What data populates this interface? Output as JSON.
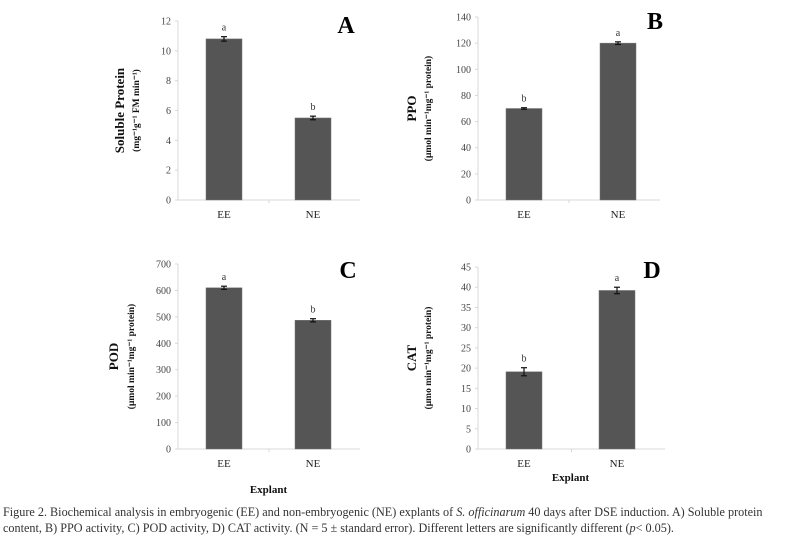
{
  "chart_data": [
    {
      "type": "bar",
      "panel": "A",
      "categories": [
        "EE",
        "NE"
      ],
      "values": [
        10.8,
        5.5
      ],
      "errors": [
        0.15,
        0.12
      ],
      "significance": [
        "a",
        "b"
      ],
      "ylabel": "Soluble Protein",
      "ylabel_unit": "(mg⁻¹g⁻¹ FM min⁻¹)",
      "xlabel": "",
      "ylim": [
        0,
        12
      ],
      "yticks": [
        0,
        2,
        4,
        6,
        8,
        10,
        12
      ],
      "bar_color": "#555555",
      "grid": false
    },
    {
      "type": "bar",
      "panel": "B",
      "categories": [
        "EE",
        "NE"
      ],
      "values": [
        70,
        120
      ],
      "errors": [
        0.6,
        1.0
      ],
      "significance": [
        "b",
        "a"
      ],
      "ylabel": "PPO",
      "ylabel_unit": "(μmol min⁻¹mg⁻¹ protein)",
      "xlabel": "",
      "ylim": [
        0,
        140
      ],
      "yticks": [
        0,
        20,
        40,
        60,
        80,
        100,
        120,
        140
      ],
      "bar_color": "#555555",
      "grid": false
    },
    {
      "type": "bar",
      "panel": "C",
      "categories": [
        "EE",
        "NE"
      ],
      "values": [
        610,
        487
      ],
      "errors": [
        6,
        6
      ],
      "significance": [
        "a",
        "b"
      ],
      "ylabel": "POD",
      "ylabel_unit": "(μmol min⁻¹mg⁻¹ protein)",
      "xlabel": "Explant",
      "ylim": [
        0,
        700
      ],
      "yticks": [
        0,
        100,
        200,
        300,
        400,
        500,
        600,
        700
      ],
      "bar_color": "#555555",
      "grid": false
    },
    {
      "type": "bar",
      "panel": "D",
      "categories": [
        "EE",
        "NE"
      ],
      "values": [
        19.1,
        39.2
      ],
      "errors": [
        1.0,
        0.8
      ],
      "significance": [
        "b",
        "a"
      ],
      "ylabel": "CAT",
      "ylabel_unit": "(μmo min⁻¹mg⁻¹ protein)",
      "xlabel": "Explant",
      "ylim": [
        0,
        45
      ],
      "yticks": [
        0,
        5,
        10,
        15,
        20,
        25,
        30,
        35,
        40,
        45
      ],
      "bar_color": "#555555",
      "grid": false
    }
  ],
  "caption": {
    "part1": "Figure 2. Biochemical analysis in embryogenic (EE) and non-embryogenic (NE) explants of ",
    "species": "S. officinarum",
    "part2": " 40 days after DSE induction. A) Soluble protein content, B) PPO activity, C) POD activity, D) CAT activity. (N = 5 ± standard error). Different letters are significantly different (",
    "p": "p",
    "part3": "< 0.05)."
  }
}
